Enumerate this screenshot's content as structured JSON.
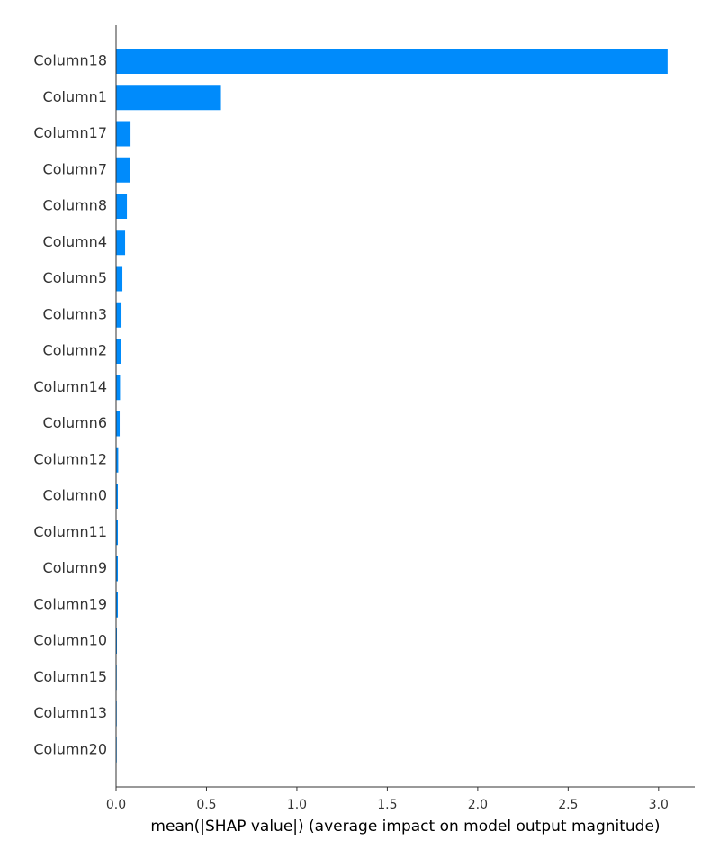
{
  "chart_data": {
    "type": "bar",
    "orientation": "horizontal",
    "categories": [
      "Column18",
      "Column1",
      "Column17",
      "Column7",
      "Column8",
      "Column4",
      "Column5",
      "Column3",
      "Column2",
      "Column14",
      "Column6",
      "Column12",
      "Column0",
      "Column11",
      "Column9",
      "Column19",
      "Column10",
      "Column15",
      "Column13",
      "Column20"
    ],
    "values": [
      3.05,
      0.58,
      0.08,
      0.075,
      0.06,
      0.05,
      0.035,
      0.03,
      0.025,
      0.022,
      0.02,
      0.012,
      0.01,
      0.01,
      0.01,
      0.01,
      0.005,
      0.004,
      0.003,
      0.002
    ],
    "xlabel": "mean(|SHAP value|) (average impact on model output magnitude)",
    "xlim": [
      0,
      3.2
    ],
    "xticks": [
      0.0,
      0.5,
      1.0,
      1.5,
      2.0,
      2.5,
      3.0
    ],
    "xtick_labels": [
      "0.0",
      "0.5",
      "1.0",
      "1.5",
      "2.0",
      "2.5",
      "3.0"
    ],
    "bar_color": "#008bfb",
    "grid": false,
    "legend": "none"
  }
}
